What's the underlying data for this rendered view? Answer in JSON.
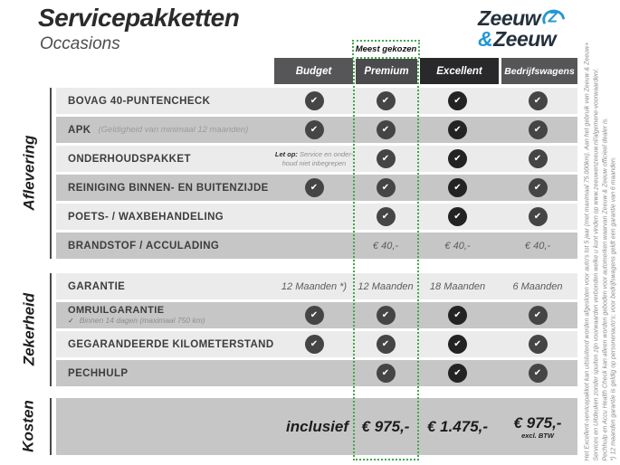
{
  "page": {
    "title": "Servicepakketten",
    "subtitle": "Occasions"
  },
  "logo": {
    "word1": "Zeeuw",
    "amp": "&",
    "word2": "Zeeuw",
    "navy": "#24303c",
    "blue": "#2397d3",
    "icon": "z-swirl-icon"
  },
  "colors": {
    "accent_green": "#43a848",
    "header_gray": "#565659",
    "header_dark": "#29292b",
    "row_light": "#ebebeb",
    "row_dark": "#c6c6c6",
    "check_gray": "#454545",
    "check_dark": "#232323"
  },
  "table": {
    "most_chosen_label": "Meest gekozen",
    "columns": [
      {
        "label": "Budget"
      },
      {
        "label": "Premium",
        "highlighted": true
      },
      {
        "label": "Excellent",
        "dark": true
      },
      {
        "label": "Bedrijfswagens"
      }
    ],
    "sections": [
      {
        "label": "Aflevering",
        "rows": [
          {
            "label": "BOVAG 40-PUNTENCHECK",
            "cells": [
              "check",
              "check",
              "check",
              "check"
            ]
          },
          {
            "label": "APK",
            "label_note": "(Geldigheid van minimaal 12 maanden)",
            "cells": [
              "check",
              "check",
              "check",
              "check"
            ]
          },
          {
            "label": "ONDERHOUDSPAKKET",
            "cells": [
              {
                "bold": "Let op:",
                "line1": "Service en onder-",
                "line2": "houd niet inbegrepen"
              },
              "check",
              "check",
              "check"
            ]
          },
          {
            "label": "REINIGING BINNEN- EN BUITENZIJDE",
            "cells": [
              "check",
              "check",
              "check",
              "check"
            ]
          },
          {
            "label": "POETS- / WAXBEHANDELING",
            "cells": [
              "",
              "check",
              "check",
              "check"
            ]
          },
          {
            "label": "BRANDSTOF / ACCULADING",
            "cells": [
              "",
              "€ 40,-",
              "€ 40,-",
              "€ 40,-"
            ]
          }
        ]
      },
      {
        "label": "Zekerheid",
        "rows": [
          {
            "label": "GARANTIE",
            "cells": [
              "12 Maanden *)",
              "12 Maanden",
              "18 Maanden",
              "6 Maanden"
            ]
          },
          {
            "label": "OMRUILGARANTIE",
            "sub_note_check": "✓",
            "sub_note": "Binnen 14 dagen (maximaal 750 km)",
            "cells": [
              "check",
              "check",
              "check",
              "check"
            ]
          },
          {
            "label": "GEGARANDEERDE KILOMETERSTAND",
            "cells": [
              "check",
              "check",
              "check",
              "check"
            ]
          },
          {
            "label": "PECHHULP",
            "cells": [
              "",
              "check",
              "check",
              "check"
            ]
          }
        ]
      }
    ],
    "kosten": {
      "label": "Kosten",
      "inclusief_label": "inclusief",
      "prices": [
        {
          "value": "€ 975,-"
        },
        {
          "value": "€ 1.475,-"
        },
        {
          "value": "€ 975,-",
          "note": "excl. BTW"
        }
      ]
    }
  },
  "footnote": {
    "lines": [
      "Het Excellent-servicepakket kan uitsluitend worden afgesloten voor auto's tot 5 jaar (met maximaal 75.000km). Aan het gebruik van Zeeuw & Zeeuw+",
      "Services en Uitdeuken zonder spuiten zijn voorwaarden verbonden welke u kunt vinden op www.zeeuwenzeeuw.nl/algemene-voorwaarden/.",
      "Pechhulp en Accu Health Check kan alleen worden geboden voor automerken waarvan Zeeuw & Zeeuw officieel dealer is.",
      "*) 12 maanden garantie is geldig op personenauto's; voor bedrijfswagens geldt een garantie van 6 maanden."
    ]
  }
}
